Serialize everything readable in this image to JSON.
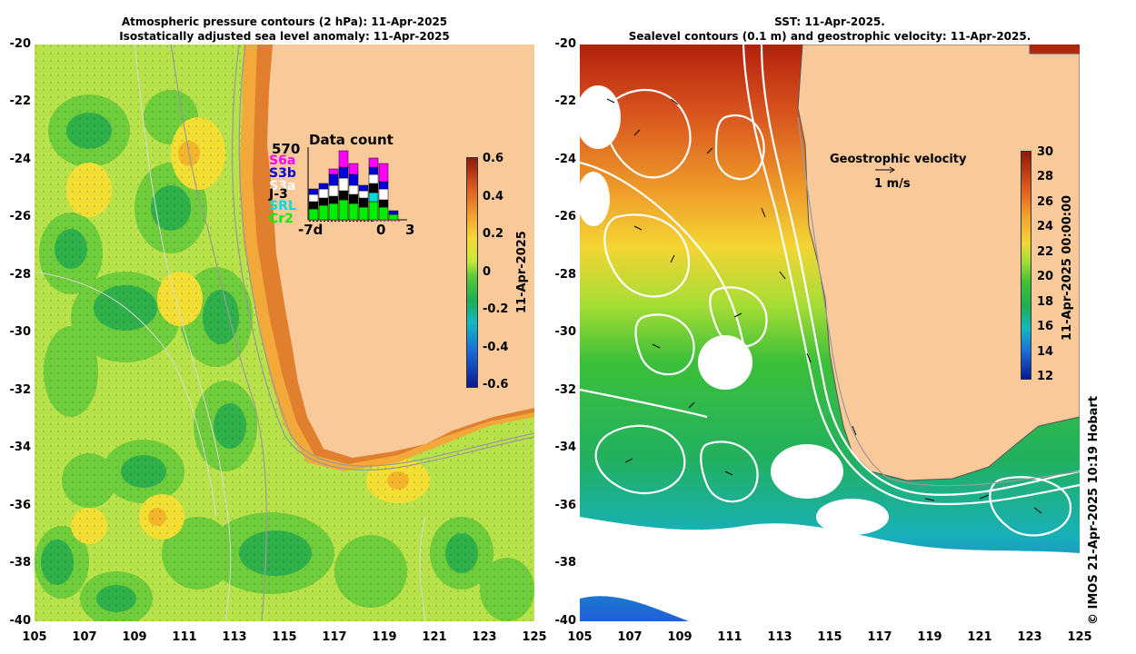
{
  "left_panel": {
    "title_line1": "Atmospheric pressure contours (2 hPa): 11-Apr-2025",
    "title_line2": "Isostatically adjusted sea level anomaly: 11-Apr-2025",
    "colorbar": {
      "label": "11-Apr-2025",
      "ticks": [
        "0.6",
        "0.4",
        "0.2",
        "0",
        "-0.2",
        "-0.4",
        "-0.6"
      ]
    },
    "data_count": {
      "title": "Data count",
      "max": "570",
      "satellites": [
        {
          "name": "S6a",
          "color": "#ff00ff"
        },
        {
          "name": "S3b",
          "color": "#0000dd"
        },
        {
          "name": "S3a",
          "color": "#ffffff"
        },
        {
          "name": "J-3",
          "color": "#000000"
        },
        {
          "name": "SRL",
          "color": "#00dddd"
        },
        {
          "name": "Cr2",
          "color": "#00ee00"
        }
      ],
      "x_labels": [
        "-7d",
        "0",
        "3"
      ]
    }
  },
  "right_panel": {
    "title_line1": "SST: 11-Apr-2025.",
    "title_line2": "Sealevel contours (0.1 m) and geostrophic velocity: 11-Apr-2025.",
    "velocity_legend": {
      "title": "Geostrophic velocity",
      "scale": "1 m/s"
    },
    "colorbar": {
      "label": "11-Apr-2025 00:00:00",
      "ticks": [
        "30",
        "28",
        "26",
        "24",
        "22",
        "20",
        "18",
        "16",
        "14",
        "12"
      ]
    }
  },
  "axes": {
    "y_ticks": [
      "-20",
      "-22",
      "-24",
      "-26",
      "-28",
      "-30",
      "-32",
      "-34",
      "-36",
      "-38",
      "-40"
    ],
    "x_ticks": [
      "105",
      "107",
      "109",
      "111",
      "113",
      "115",
      "117",
      "119",
      "121",
      "123",
      "125"
    ]
  },
  "credit": "© IMOS 21-Apr-2025 10:19 Hobart",
  "colors": {
    "land": "#f9c99a",
    "coast_contour": "#999999"
  }
}
